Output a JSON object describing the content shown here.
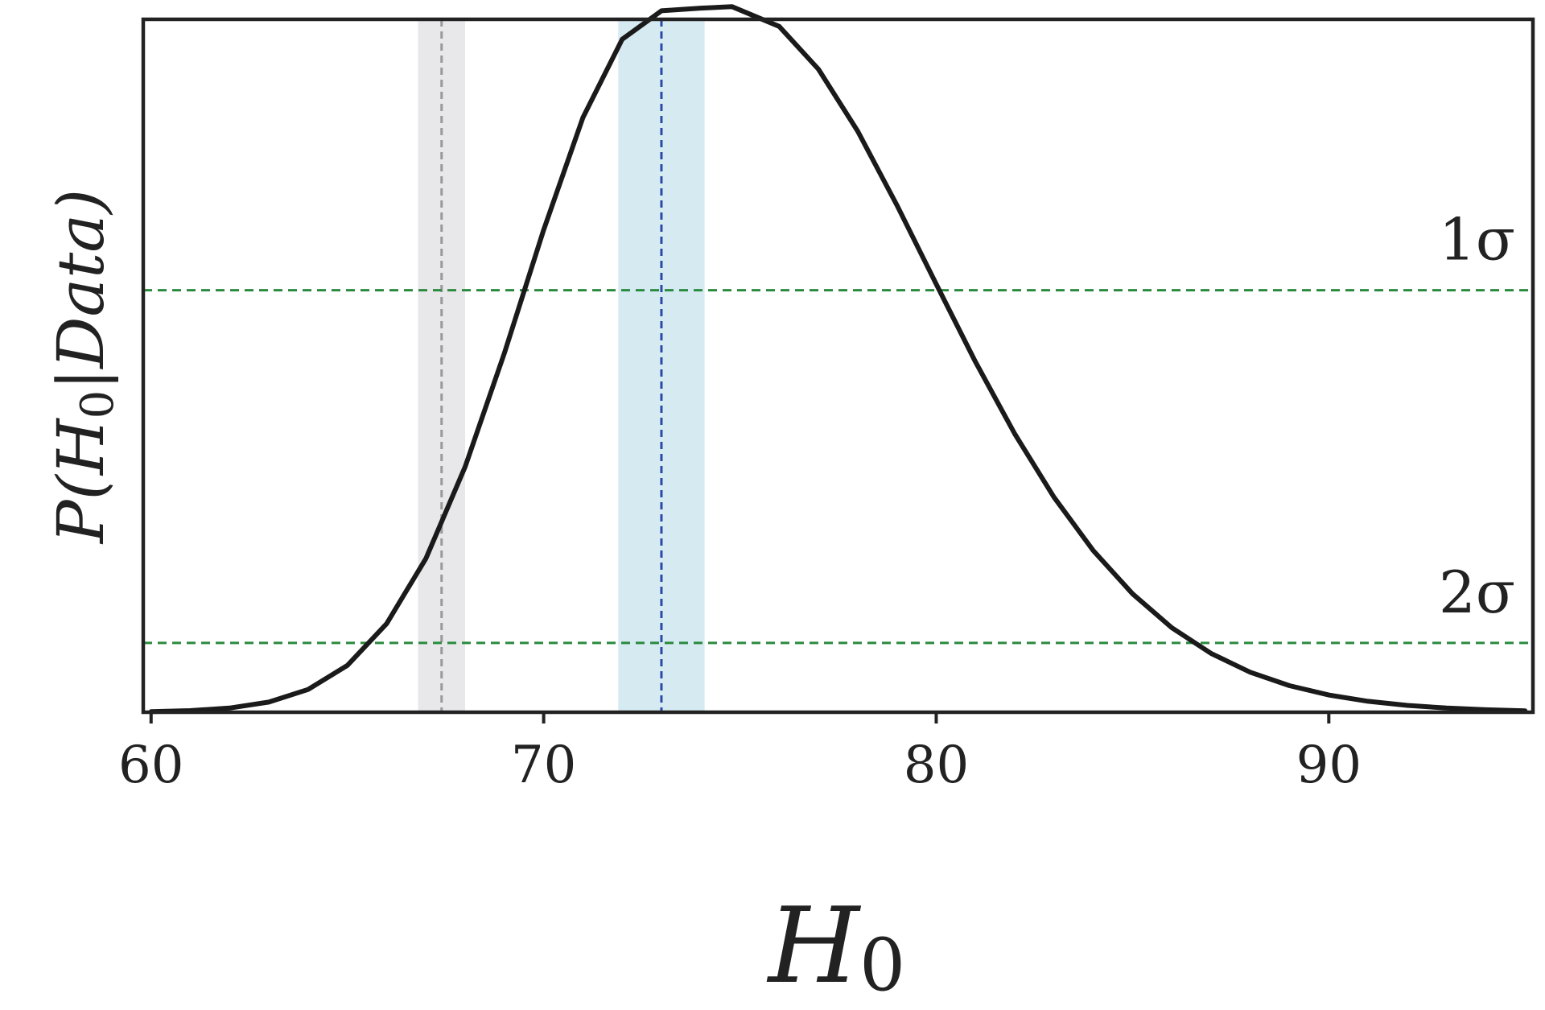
{
  "chart_data": {
    "type": "line",
    "xlabel": "H_0",
    "ylabel": "P(H_0|Data)",
    "xlim": [
      59.8,
      95.2
    ],
    "ylim": [
      0,
      1.1
    ],
    "xticks": [
      60,
      70,
      80,
      90
    ],
    "xtick_labels": [
      "60",
      "70",
      "80",
      "90"
    ],
    "yticks_shown": false,
    "grid": false,
    "series": [
      {
        "color": "#1a1a1a",
        "x": [
          60,
          61,
          62,
          63,
          64,
          65,
          66,
          67,
          68,
          69,
          70,
          71,
          72,
          73,
          74,
          74.8,
          76,
          77,
          78,
          79,
          80,
          81,
          82,
          83,
          84,
          85,
          86,
          87,
          88,
          89,
          90,
          91,
          92,
          93,
          94,
          95
        ],
        "y": [
          0.0009,
          0.0025,
          0.0066,
          0.0161,
          0.0361,
          0.0743,
          0.1406,
          0.2442,
          0.3895,
          0.5701,
          0.7656,
          0.944,
          1.0683,
          1.1136,
          1.1177,
          1.12,
          1.0888,
          1.0208,
          0.9224,
          0.8048,
          0.6795,
          0.5562,
          0.442,
          0.3414,
          0.2567,
          0.188,
          0.1342,
          0.0934,
          0.0635,
          0.0422,
          0.0274,
          0.0174,
          0.0108,
          0.0066,
          0.0039,
          0.0023
        ]
      }
    ],
    "bands": [
      {
        "name": "left",
        "x_center": 67.4,
        "x_min": 66.8,
        "x_max": 68.0,
        "band_color": "#e8e8ea",
        "line_color": "#999999"
      },
      {
        "name": "right",
        "x_center": 73.0,
        "x_min": 71.9,
        "x_max": 74.1,
        "band_color": "#d6eaf2",
        "line_color": "#2b4aa8"
      }
    ],
    "hlines": [
      {
        "label": "1σ",
        "y": 0.67,
        "color": "#2a8a3e"
      },
      {
        "label": "2σ",
        "y": 0.11,
        "color": "#2a8a3e"
      }
    ]
  }
}
